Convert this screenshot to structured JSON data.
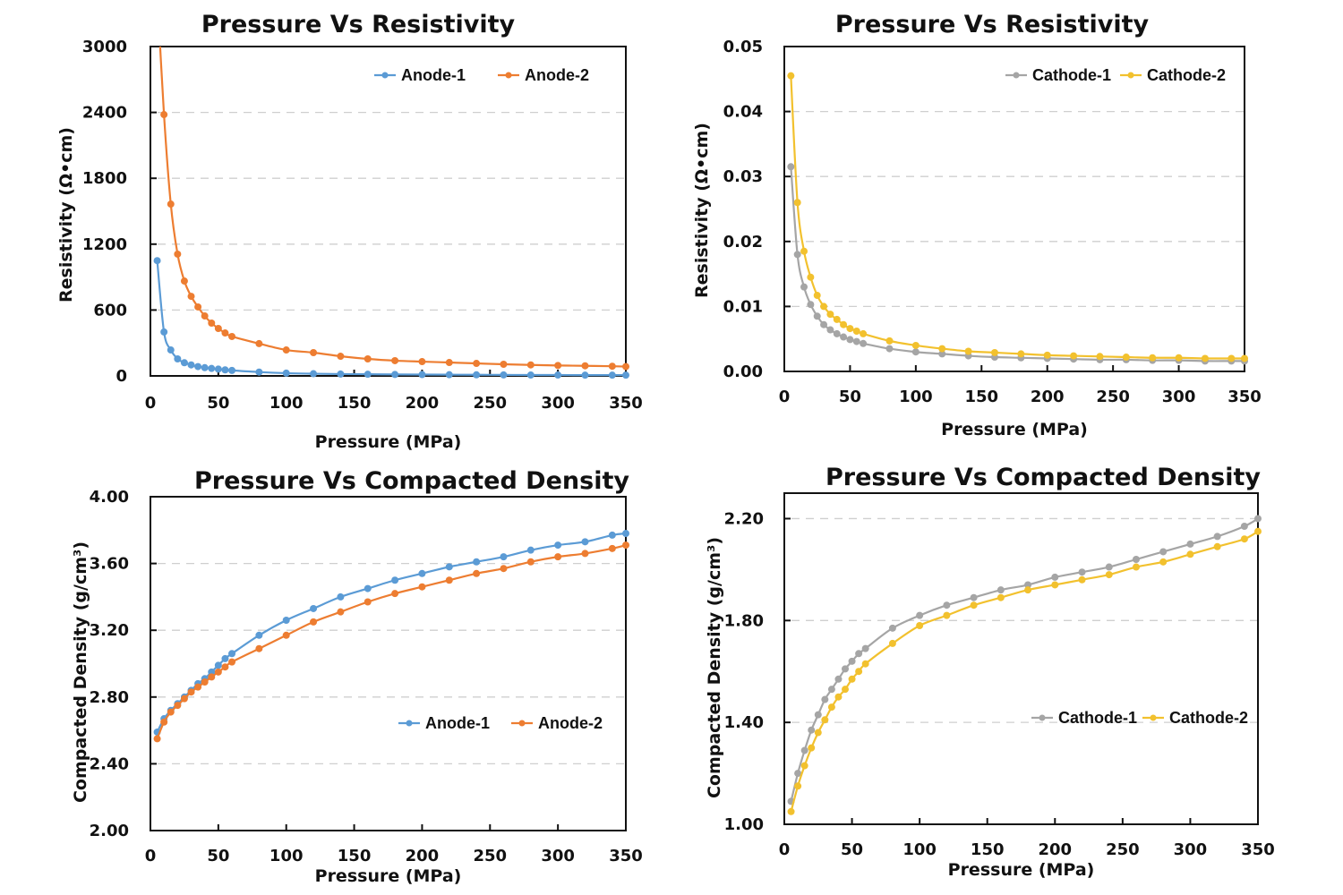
{
  "chart_data": [
    {
      "id": "anode-resistivity",
      "type": "line",
      "title": "Pressure Vs Resistivity",
      "xlabel": "Pressure  (MPa)",
      "ylabel": "Resistivity (Ω•cm)",
      "xlim": [
        0,
        350
      ],
      "ylim": [
        0,
        3000
      ],
      "xticks": [
        0,
        50,
        100,
        150,
        200,
        250,
        300,
        350
      ],
      "yticks": [
        0,
        600,
        1200,
        1800,
        2400,
        3000
      ],
      "ytick_labels": [
        "0",
        "600",
        "1200",
        "1800",
        "2400",
        "3000"
      ],
      "grid": "horizontal-dashed",
      "legend_position": "top-right",
      "series": [
        {
          "name": "Anode-1",
          "color": "#5b9bd5",
          "x": [
            5,
            10,
            15,
            20,
            25,
            30,
            35,
            40,
            45,
            50,
            55,
            60,
            80,
            100,
            120,
            140,
            160,
            180,
            200,
            220,
            240,
            260,
            280,
            300,
            320,
            340,
            350
          ],
          "y": [
            1050,
            400,
            236,
            155,
            120,
            100,
            85,
            75,
            68,
            62,
            55,
            50,
            35,
            25,
            20,
            17,
            15,
            13,
            12,
            11,
            10,
            9,
            8,
            8,
            7,
            7,
            7
          ]
        },
        {
          "name": "Anode-2",
          "color": "#ed7d31",
          "x": [
            5,
            10,
            15,
            20,
            25,
            30,
            35,
            40,
            45,
            50,
            55,
            60,
            80,
            100,
            120,
            140,
            160,
            180,
            200,
            220,
            240,
            260,
            280,
            300,
            320,
            340,
            350
          ],
          "y": [
            3500,
            2380,
            1565,
            1109,
            864,
            725,
            628,
            546,
            481,
            432,
            391,
            359,
            294,
            236,
            212,
            179,
            155,
            139,
            130,
            122,
            114,
            106,
            100,
            95,
            92,
            88,
            85
          ]
        }
      ]
    },
    {
      "id": "cathode-resistivity",
      "type": "line",
      "title": "Pressure Vs Resistivity",
      "xlabel": "Pressure  (MPa)",
      "ylabel": "Resistivity (Ω•cm)",
      "xlim": [
        0,
        350
      ],
      "ylim": [
        0,
        0.05
      ],
      "xticks": [
        0,
        50,
        100,
        150,
        200,
        250,
        300,
        350
      ],
      "yticks": [
        0,
        0.01,
        0.02,
        0.03,
        0.04,
        0.05
      ],
      "ytick_labels": [
        "0.00",
        "0.01",
        "0.02",
        "0.03",
        "0.04",
        "0.05"
      ],
      "grid": "horizontal-dashed",
      "legend_position": "top-right",
      "series": [
        {
          "name": "Cathode-1",
          "color": "#a5a5a5",
          "x": [
            5,
            10,
            15,
            20,
            25,
            30,
            35,
            40,
            45,
            50,
            55,
            60,
            80,
            100,
            120,
            140,
            160,
            180,
            200,
            220,
            240,
            260,
            280,
            300,
            320,
            340,
            350
          ],
          "y": [
            0.0315,
            0.018,
            0.013,
            0.0103,
            0.0085,
            0.0072,
            0.0064,
            0.0058,
            0.0053,
            0.0049,
            0.0046,
            0.0043,
            0.0035,
            0.003,
            0.0027,
            0.0024,
            0.0022,
            0.0021,
            0.002,
            0.0019,
            0.0018,
            0.0018,
            0.0017,
            0.0017,
            0.0016,
            0.0016,
            0.0016
          ]
        },
        {
          "name": "Cathode-2",
          "color": "#f2c12e",
          "x": [
            5,
            10,
            15,
            20,
            25,
            30,
            35,
            40,
            45,
            50,
            55,
            60,
            80,
            100,
            120,
            140,
            160,
            180,
            200,
            220,
            240,
            260,
            280,
            300,
            320,
            340,
            350
          ],
          "y": [
            0.0455,
            0.026,
            0.0185,
            0.0145,
            0.0117,
            0.01,
            0.0088,
            0.008,
            0.0072,
            0.0066,
            0.0062,
            0.0058,
            0.0047,
            0.004,
            0.0035,
            0.0031,
            0.0029,
            0.0027,
            0.0025,
            0.0024,
            0.0023,
            0.0022,
            0.0021,
            0.0021,
            0.002,
            0.002,
            0.002
          ]
        }
      ]
    },
    {
      "id": "anode-density",
      "type": "line",
      "title": "Pressure  Vs Compacted Density",
      "xlabel": "Pressure  (MPa)",
      "ylabel": "Compacted Density (g/cm³)",
      "xlim": [
        0,
        350
      ],
      "ylim": [
        2.0,
        4.0
      ],
      "xticks": [
        0,
        50,
        100,
        150,
        200,
        250,
        300,
        350
      ],
      "yticks": [
        2.0,
        2.4,
        2.8,
        3.2,
        3.6,
        4.0
      ],
      "ytick_labels": [
        "2.00",
        "2.40",
        "2.80",
        "3.20",
        "3.60",
        "4.00"
      ],
      "grid": "horizontal-dashed",
      "legend_position": "lower-right",
      "series": [
        {
          "name": "Anode-1",
          "color": "#5b9bd5",
          "x": [
            5,
            10,
            15,
            20,
            25,
            30,
            35,
            40,
            45,
            50,
            55,
            60,
            80,
            100,
            120,
            140,
            160,
            180,
            200,
            220,
            240,
            260,
            280,
            300,
            320,
            340,
            350
          ],
          "y": [
            2.59,
            2.67,
            2.72,
            2.76,
            2.8,
            2.84,
            2.88,
            2.91,
            2.95,
            2.99,
            3.03,
            3.06,
            3.17,
            3.26,
            3.33,
            3.4,
            3.45,
            3.5,
            3.54,
            3.58,
            3.61,
            3.64,
            3.68,
            3.71,
            3.73,
            3.77,
            3.78
          ]
        },
        {
          "name": "Anode-2",
          "color": "#ed7d31",
          "x": [
            5,
            10,
            15,
            20,
            25,
            30,
            35,
            40,
            45,
            50,
            55,
            60,
            80,
            100,
            120,
            140,
            160,
            180,
            200,
            220,
            240,
            260,
            280,
            300,
            320,
            340,
            350
          ],
          "y": [
            2.55,
            2.65,
            2.71,
            2.75,
            2.79,
            2.83,
            2.86,
            2.89,
            2.92,
            2.95,
            2.98,
            3.01,
            3.09,
            3.17,
            3.25,
            3.31,
            3.37,
            3.42,
            3.46,
            3.5,
            3.54,
            3.57,
            3.61,
            3.64,
            3.66,
            3.69,
            3.71
          ]
        }
      ]
    },
    {
      "id": "cathode-density",
      "type": "line",
      "title": "Pressure  Vs Compacted Density",
      "xlabel": "Pressure  (MPa)",
      "ylabel": "Compacted Density (g/cm³)",
      "xlim": [
        0,
        350
      ],
      "ylim": [
        1.0,
        2.3
      ],
      "xticks": [
        0,
        50,
        100,
        150,
        200,
        250,
        300,
        350
      ],
      "yticks": [
        1.0,
        1.4,
        1.8,
        2.2
      ],
      "ytick_labels": [
        "1.00",
        "1.40",
        "1.80",
        "2.20"
      ],
      "grid": "horizontal-dashed",
      "legend_position": "lower-right",
      "series": [
        {
          "name": "Cathode-1",
          "color": "#a5a5a5",
          "x": [
            5,
            10,
            15,
            20,
            25,
            30,
            35,
            40,
            45,
            50,
            55,
            60,
            80,
            100,
            120,
            140,
            160,
            180,
            200,
            220,
            240,
            260,
            280,
            300,
            320,
            340,
            350
          ],
          "y": [
            1.09,
            1.2,
            1.29,
            1.37,
            1.43,
            1.49,
            1.53,
            1.57,
            1.61,
            1.64,
            1.67,
            1.69,
            1.77,
            1.82,
            1.86,
            1.89,
            1.92,
            1.94,
            1.97,
            1.99,
            2.01,
            2.04,
            2.07,
            2.1,
            2.13,
            2.17,
            2.2
          ]
        },
        {
          "name": "Cathode-2",
          "color": "#f2c12e",
          "x": [
            5,
            10,
            15,
            20,
            25,
            30,
            35,
            40,
            45,
            50,
            55,
            60,
            80,
            100,
            120,
            140,
            160,
            180,
            200,
            220,
            240,
            260,
            280,
            300,
            320,
            340,
            350
          ],
          "y": [
            1.05,
            1.15,
            1.23,
            1.3,
            1.36,
            1.41,
            1.46,
            1.5,
            1.53,
            1.57,
            1.6,
            1.63,
            1.71,
            1.78,
            1.82,
            1.86,
            1.89,
            1.92,
            1.94,
            1.96,
            1.98,
            2.01,
            2.03,
            2.06,
            2.09,
            2.12,
            2.15
          ]
        }
      ]
    }
  ]
}
